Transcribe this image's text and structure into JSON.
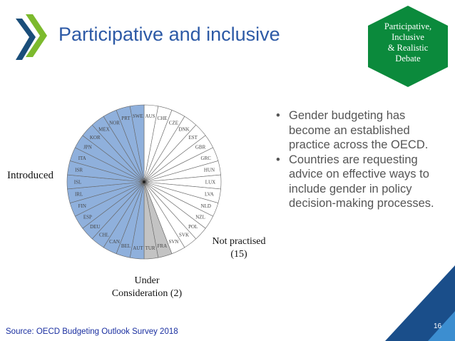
{
  "slide": {
    "title": "Participative and inclusive",
    "badge_lines": [
      "Participative,",
      "Inclusive",
      "& Realistic",
      "Debate"
    ],
    "bullets": [
      "Gender budgeting has become an established practice across the OECD.",
      "Countries are requesting advice on effective ways to include gender in policy decision-making processes."
    ],
    "source": "Source: OECD Budgeting Outlook Survey 2018",
    "page_number": "16"
  },
  "colors": {
    "title": "#2d5aa6",
    "badge": "#0b8a3c",
    "logo_green": "#7cba2d",
    "logo_dark": "#1a4e7a",
    "introduced": "#8fb0dc",
    "under_consideration": "#c3c3c3",
    "not_practised": "#ffffff",
    "corner_dark": "#1a4e8a",
    "corner_light": "#3c8ed0"
  },
  "chart_data": {
    "type": "pie",
    "title": "",
    "group_labels": {
      "introduced": "Introduced",
      "not_practised": [
        "Not practised",
        "(15)"
      ],
      "under_consideration": [
        "Under",
        "Consideration (2)"
      ]
    },
    "slices": [
      {
        "label": "AUS",
        "group": "not_practised",
        "value": 1
      },
      {
        "label": "CHE",
        "group": "not_practised",
        "value": 1
      },
      {
        "label": "CZE",
        "group": "not_practised",
        "value": 1
      },
      {
        "label": "DNK",
        "group": "not_practised",
        "value": 1
      },
      {
        "label": "EST",
        "group": "not_practised",
        "value": 1
      },
      {
        "label": "GBR",
        "group": "not_practised",
        "value": 1
      },
      {
        "label": "GRC",
        "group": "not_practised",
        "value": 1
      },
      {
        "label": "HUN",
        "group": "not_practised",
        "value": 1
      },
      {
        "label": "LUX",
        "group": "not_practised",
        "value": 1
      },
      {
        "label": "LVA",
        "group": "not_practised",
        "value": 1
      },
      {
        "label": "NLD",
        "group": "not_practised",
        "value": 1
      },
      {
        "label": "NZL",
        "group": "not_practised",
        "value": 1
      },
      {
        "label": "POL",
        "group": "not_practised",
        "value": 1
      },
      {
        "label": "SVK",
        "group": "not_practised",
        "value": 1
      },
      {
        "label": "SVN",
        "group": "not_practised",
        "value": 1
      },
      {
        "label": "FRA",
        "group": "under_consideration",
        "value": 1
      },
      {
        "label": "TUR",
        "group": "under_consideration",
        "value": 1
      },
      {
        "label": "AUT",
        "group": "introduced",
        "value": 1
      },
      {
        "label": "BEL",
        "group": "introduced",
        "value": 1
      },
      {
        "label": "CAN",
        "group": "introduced",
        "value": 1
      },
      {
        "label": "CHL",
        "group": "introduced",
        "value": 1
      },
      {
        "label": "DEU",
        "group": "introduced",
        "value": 1
      },
      {
        "label": "ESP",
        "group": "introduced",
        "value": 1
      },
      {
        "label": "FIN",
        "group": "introduced",
        "value": 1
      },
      {
        "label": "IRL",
        "group": "introduced",
        "value": 1
      },
      {
        "label": "ISL",
        "group": "introduced",
        "value": 1
      },
      {
        "label": "ISR",
        "group": "introduced",
        "value": 1
      },
      {
        "label": "ITA",
        "group": "introduced",
        "value": 1
      },
      {
        "label": "JPN",
        "group": "introduced",
        "value": 1
      },
      {
        "label": "KOR",
        "group": "introduced",
        "value": 1
      },
      {
        "label": "MEX",
        "group": "introduced",
        "value": 1
      },
      {
        "label": "NOR",
        "group": "introduced",
        "value": 1
      },
      {
        "label": "PRT",
        "group": "introduced",
        "value": 1
      },
      {
        "label": "SWE",
        "group": "introduced",
        "value": 1
      }
    ]
  }
}
